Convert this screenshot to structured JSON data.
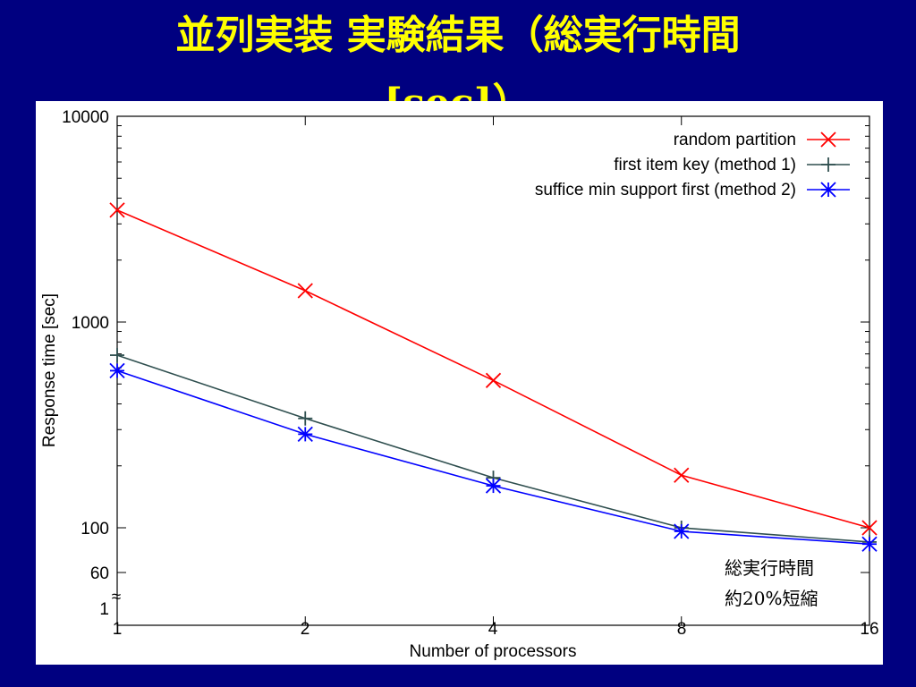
{
  "slide": {
    "title_line1": "並列実装 実験結果（総実行時間",
    "title_line2": "[sec]）"
  },
  "chart_data": {
    "type": "line",
    "xlabel": "Number of processors",
    "ylabel": "Response time [sec]",
    "x": [
      1,
      2,
      4,
      8,
      16
    ],
    "x_ticks": [
      "1",
      "2",
      "4",
      "8",
      "16"
    ],
    "y_scale": "log",
    "ylim": [
      60,
      10000
    ],
    "y_ticks": [
      "10000",
      "1000",
      "100",
      "60",
      "1"
    ],
    "axis_break": "≈",
    "legend_position": "top-right",
    "series": [
      {
        "name": "random partition",
        "color": "#ff0000",
        "marker": "x",
        "values": [
          3500,
          1420,
          520,
          180,
          100
        ]
      },
      {
        "name": "first item key (method 1)",
        "color": "#2f4f4f",
        "marker": "plus",
        "values": [
          690,
          340,
          175,
          100,
          85
        ]
      },
      {
        "name": "suffice min support first (method 2)",
        "color": "#0000ff",
        "marker": "star",
        "values": [
          580,
          285,
          160,
          96,
          83
        ]
      }
    ],
    "annotation": {
      "line1": "総実行時間",
      "line2_prefix": "約",
      "line2_number": "20",
      "line2_suffix": "%短縮"
    }
  }
}
